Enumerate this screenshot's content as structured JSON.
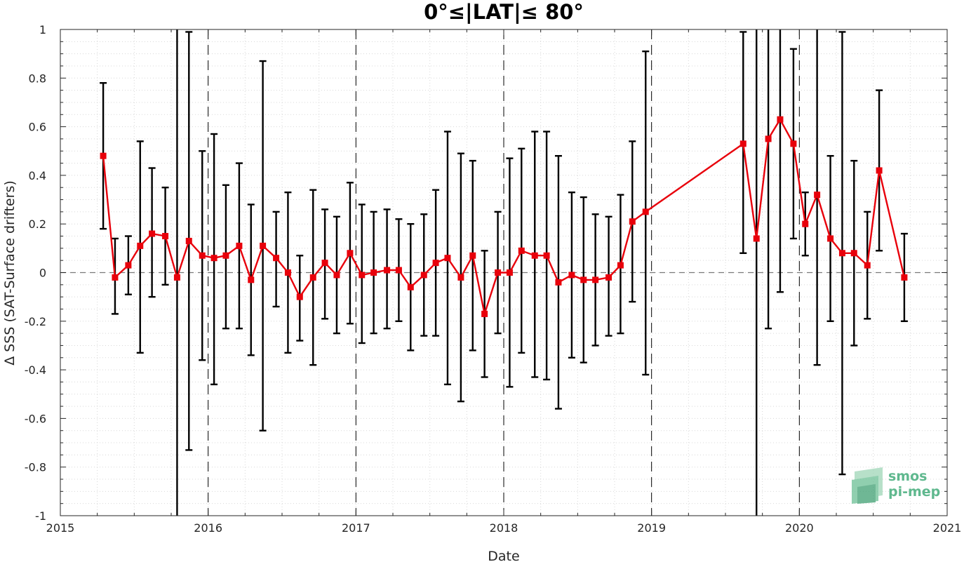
{
  "chart_data": {
    "type": "line",
    "title": "0°≤|LAT|≤ 80°",
    "xlabel": "Date",
    "ylabel": "Δ SSS (SAT-Surface drifters)",
    "xlim": [
      2015,
      2021
    ],
    "ylim": [
      -1,
      1
    ],
    "x_ticks": [
      "2015",
      "2016",
      "2017",
      "2018",
      "2019",
      "2020",
      "2021"
    ],
    "y_ticks": [
      "-1",
      "-0.8",
      "-0.6",
      "-0.4",
      "-0.2",
      "0",
      "0.2",
      "0.4",
      "0.6",
      "0.8",
      "1"
    ],
    "grid": "minor dotted",
    "reference_line_y": 0,
    "series": [
      {
        "color": "#e8000b",
        "marker": "square",
        "points": [
          {
            "x": 2015.29,
            "y": 0.48,
            "lo": 0.18,
            "hi": 0.78
          },
          {
            "x": 2015.37,
            "y": -0.02,
            "lo": -0.17,
            "hi": 0.14
          },
          {
            "x": 2015.46,
            "y": 0.03,
            "lo": -0.09,
            "hi": 0.15
          },
          {
            "x": 2015.54,
            "y": 0.11,
            "lo": -0.33,
            "hi": 0.54
          },
          {
            "x": 2015.62,
            "y": 0.16,
            "lo": -0.1,
            "hi": 0.43
          },
          {
            "x": 2015.71,
            "y": 0.15,
            "lo": -0.05,
            "hi": 0.35
          },
          {
            "x": 2015.79,
            "y": -0.02,
            "lo": -1.0,
            "hi": 1.0
          },
          {
            "x": 2015.87,
            "y": 0.13,
            "lo": -0.73,
            "hi": 0.99
          },
          {
            "x": 2015.96,
            "y": 0.07,
            "lo": -0.36,
            "hi": 0.5
          },
          {
            "x": 2016.04,
            "y": 0.06,
            "lo": -0.46,
            "hi": 0.57
          },
          {
            "x": 2016.12,
            "y": 0.07,
            "lo": -0.23,
            "hi": 0.36
          },
          {
            "x": 2016.21,
            "y": 0.11,
            "lo": -0.23,
            "hi": 0.45
          },
          {
            "x": 2016.29,
            "y": -0.03,
            "lo": -0.34,
            "hi": 0.28
          },
          {
            "x": 2016.37,
            "y": 0.11,
            "lo": -0.65,
            "hi": 0.87
          },
          {
            "x": 2016.46,
            "y": 0.06,
            "lo": -0.14,
            "hi": 0.25
          },
          {
            "x": 2016.54,
            "y": 0.0,
            "lo": -0.33,
            "hi": 0.33
          },
          {
            "x": 2016.62,
            "y": -0.1,
            "lo": -0.28,
            "hi": 0.07
          },
          {
            "x": 2016.71,
            "y": -0.02,
            "lo": -0.38,
            "hi": 0.34
          },
          {
            "x": 2016.79,
            "y": 0.04,
            "lo": -0.19,
            "hi": 0.26
          },
          {
            "x": 2016.87,
            "y": -0.01,
            "lo": -0.25,
            "hi": 0.23
          },
          {
            "x": 2016.96,
            "y": 0.08,
            "lo": -0.21,
            "hi": 0.37
          },
          {
            "x": 2017.04,
            "y": -0.01,
            "lo": -0.29,
            "hi": 0.28
          },
          {
            "x": 2017.12,
            "y": 0.0,
            "lo": -0.25,
            "hi": 0.25
          },
          {
            "x": 2017.21,
            "y": 0.01,
            "lo": -0.23,
            "hi": 0.26
          },
          {
            "x": 2017.29,
            "y": 0.01,
            "lo": -0.2,
            "hi": 0.22
          },
          {
            "x": 2017.37,
            "y": -0.06,
            "lo": -0.32,
            "hi": 0.2
          },
          {
            "x": 2017.46,
            "y": -0.01,
            "lo": -0.26,
            "hi": 0.24
          },
          {
            "x": 2017.54,
            "y": 0.04,
            "lo": -0.26,
            "hi": 0.34
          },
          {
            "x": 2017.62,
            "y": 0.06,
            "lo": -0.46,
            "hi": 0.58
          },
          {
            "x": 2017.71,
            "y": -0.02,
            "lo": -0.53,
            "hi": 0.49
          },
          {
            "x": 2017.79,
            "y": 0.07,
            "lo": -0.32,
            "hi": 0.46
          },
          {
            "x": 2017.87,
            "y": -0.17,
            "lo": -0.43,
            "hi": 0.09
          },
          {
            "x": 2017.96,
            "y": 0.0,
            "lo": -0.25,
            "hi": 0.25
          },
          {
            "x": 2018.04,
            "y": 0.0,
            "lo": -0.47,
            "hi": 0.47
          },
          {
            "x": 2018.12,
            "y": 0.09,
            "lo": -0.33,
            "hi": 0.51
          },
          {
            "x": 2018.21,
            "y": 0.07,
            "lo": -0.43,
            "hi": 0.58
          },
          {
            "x": 2018.29,
            "y": 0.07,
            "lo": -0.44,
            "hi": 0.58
          },
          {
            "x": 2018.37,
            "y": -0.04,
            "lo": -0.56,
            "hi": 0.48
          },
          {
            "x": 2018.46,
            "y": -0.01,
            "lo": -0.35,
            "hi": 0.33
          },
          {
            "x": 2018.54,
            "y": -0.03,
            "lo": -0.37,
            "hi": 0.31
          },
          {
            "x": 2018.62,
            "y": -0.03,
            "lo": -0.3,
            "hi": 0.24
          },
          {
            "x": 2018.71,
            "y": -0.02,
            "lo": -0.26,
            "hi": 0.23
          },
          {
            "x": 2018.79,
            "y": 0.03,
            "lo": -0.25,
            "hi": 0.32
          },
          {
            "x": 2018.87,
            "y": 0.21,
            "lo": -0.12,
            "hi": 0.54
          },
          {
            "x": 2018.96,
            "y": 0.25,
            "lo": -0.42,
            "hi": 0.91
          },
          {
            "x": 2019.62,
            "y": 0.53,
            "lo": 0.08,
            "hi": 0.99
          },
          {
            "x": 2019.71,
            "y": 0.14,
            "lo": -1.0,
            "hi": 1.0
          },
          {
            "x": 2019.79,
            "y": 0.55,
            "lo": -0.23,
            "hi": 1.0
          },
          {
            "x": 2019.87,
            "y": 0.63,
            "lo": -0.08,
            "hi": 1.0
          },
          {
            "x": 2019.96,
            "y": 0.53,
            "lo": 0.14,
            "hi": 0.92
          },
          {
            "x": 2020.04,
            "y": 0.2,
            "lo": 0.07,
            "hi": 0.33
          },
          {
            "x": 2020.12,
            "y": 0.32,
            "lo": -0.38,
            "hi": 1.0
          },
          {
            "x": 2020.21,
            "y": 0.14,
            "lo": -0.2,
            "hi": 0.48
          },
          {
            "x": 2020.29,
            "y": 0.08,
            "lo": -0.83,
            "hi": 0.99
          },
          {
            "x": 2020.37,
            "y": 0.08,
            "lo": -0.3,
            "hi": 0.46
          },
          {
            "x": 2020.46,
            "y": 0.03,
            "lo": -0.19,
            "hi": 0.25
          },
          {
            "x": 2020.54,
            "y": 0.42,
            "lo": 0.09,
            "hi": 0.75
          },
          {
            "x": 2020.71,
            "y": -0.02,
            "lo": -0.2,
            "hi": 0.16
          }
        ]
      }
    ],
    "year_boundaries": [
      2016,
      2017,
      2018,
      2019,
      2020
    ]
  },
  "logo": {
    "line1": "smos",
    "line2": "pi-mep",
    "color": "#5fb88e"
  }
}
